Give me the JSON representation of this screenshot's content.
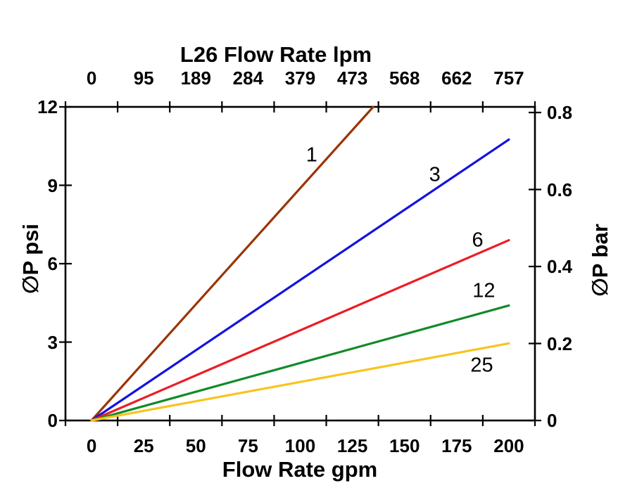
{
  "window": {
    "background": "#ffffff"
  },
  "chart_data": {
    "type": "line",
    "title": "L26 Flow Rate lpm",
    "model": "L26",
    "grid": false,
    "legend": "inline-curve-labels",
    "axis_color": "#000000",
    "x_axis_bottom": {
      "label": "Flow Rate gpm",
      "unit": "gpm",
      "range": [
        0,
        200
      ],
      "tick_labels": [
        "0",
        "25",
        "50",
        "75",
        "100",
        "125",
        "150",
        "175",
        "200"
      ]
    },
    "x_axis_top": {
      "label": "L26 Flow Rate lpm",
      "unit": "lpm",
      "range": [
        0,
        757
      ],
      "tick_labels": [
        "0",
        "95",
        "189",
        "284",
        "379",
        "473",
        "568",
        "662",
        "757"
      ]
    },
    "y_axis_left": {
      "label": "∅P psi",
      "unit": "psi",
      "range": [
        0,
        12
      ],
      "tick_labels": [
        "0",
        "3",
        "6",
        "9",
        "12"
      ]
    },
    "y_axis_right": {
      "label": "∅P bar",
      "unit": "bar",
      "range": [
        0,
        0.8
      ],
      "tick_labels": [
        "0",
        "0.2",
        "0.4",
        "0.6",
        "0.8"
      ]
    },
    "series": [
      {
        "label": "1",
        "color": "#9A3505",
        "points_gpm_psi": [
          [
            0,
            0
          ],
          [
            135,
            12
          ]
        ],
        "label_anchor_gpm_psi": [
          105.5,
          10.15
        ]
      },
      {
        "label": "3",
        "color": "#1414DD",
        "points_gpm_psi": [
          [
            0,
            0
          ],
          [
            200,
            10.75
          ]
        ],
        "label_anchor_gpm_psi": [
          164.5,
          9.4
        ]
      },
      {
        "label": "6",
        "color": "#EC1C24",
        "points_gpm_psi": [
          [
            0,
            0
          ],
          [
            200,
            6.9
          ]
        ],
        "label_anchor_gpm_psi": [
          185.0,
          6.9
        ]
      },
      {
        "label": "12",
        "color": "#128A28",
        "points_gpm_psi": [
          [
            0,
            0
          ],
          [
            200,
            4.4
          ]
        ],
        "label_anchor_gpm_psi": [
          188.0,
          4.95
        ]
      },
      {
        "label": "25",
        "color": "#F8C41E",
        "points_gpm_psi": [
          [
            0,
            0
          ],
          [
            200,
            2.95
          ]
        ],
        "label_anchor_gpm_psi": [
          187.0,
          2.1
        ]
      }
    ]
  }
}
